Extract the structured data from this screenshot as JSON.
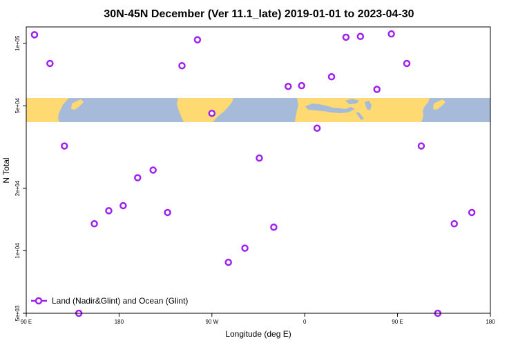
{
  "chart_data": {
    "type": "scatter",
    "title": "30N-45N December (Ver 11.1_late)   2019-01-01 to 2023-04-30",
    "xlabel": "Longitude (deg E)",
    "ylabel": "N Total",
    "x_scale": "linear",
    "y_scale": "log",
    "xlim": [
      90,
      540
    ],
    "ylim": [
      5000,
      120000
    ],
    "x_ticks": [
      {
        "value": 90,
        "label": "90 E"
      },
      {
        "value": 180,
        "label": "180"
      },
      {
        "value": 270,
        "label": "90 W"
      },
      {
        "value": 360,
        "label": "0"
      },
      {
        "value": 450,
        "label": "90 E"
      },
      {
        "value": 540,
        "label": "180"
      }
    ],
    "y_ticks": [
      {
        "value": 5000,
        "label": "5e+03"
      },
      {
        "value": 10000,
        "label": "1e+04"
      },
      {
        "value": 20000,
        "label": "2e+04"
      },
      {
        "value": 50000,
        "label": "5e+04"
      },
      {
        "value": 100000,
        "label": "1e+05"
      }
    ],
    "map_strip": {
      "lat_range": "30N-45N",
      "land_color": "#FFD972",
      "ocean_color": "#A6BBD9"
    },
    "legend": {
      "position": "bottom-left",
      "label": "Land (Nadir&Glint) and Ocean (Glint)"
    },
    "series": [
      {
        "name": "Land (Nadir&Glint) and Ocean (Glint)",
        "color": "#A020F0",
        "points": [
          {
            "x": 98,
            "y": 110000
          },
          {
            "x": 113,
            "y": 80000
          },
          {
            "x": 127,
            "y": 32000
          },
          {
            "x": 141,
            "y": 5000
          },
          {
            "x": 156,
            "y": 13500
          },
          {
            "x": 170,
            "y": 15600
          },
          {
            "x": 184,
            "y": 16500
          },
          {
            "x": 198,
            "y": 22500
          },
          {
            "x": 213,
            "y": 24500
          },
          {
            "x": 227,
            "y": 15300
          },
          {
            "x": 241,
            "y": 78000
          },
          {
            "x": 256,
            "y": 104000
          },
          {
            "x": 270,
            "y": 46000
          },
          {
            "x": 286,
            "y": 8800
          },
          {
            "x": 302,
            "y": 10300
          },
          {
            "x": 316,
            "y": 28000
          },
          {
            "x": 330,
            "y": 13000
          },
          {
            "x": 344,
            "y": 62000
          },
          {
            "x": 357,
            "y": 62500
          },
          {
            "x": 372,
            "y": 39000
          },
          {
            "x": 386,
            "y": 69000
          },
          {
            "x": 400,
            "y": 107000
          },
          {
            "x": 414,
            "y": 108000
          },
          {
            "x": 430,
            "y": 60000
          },
          {
            "x": 444,
            "y": 111000
          },
          {
            "x": 459,
            "y": 80000
          },
          {
            "x": 473,
            "y": 32000
          },
          {
            "x": 489,
            "y": 5000
          },
          {
            "x": 505,
            "y": 13500
          },
          {
            "x": 522,
            "y": 15300
          }
        ]
      }
    ]
  }
}
